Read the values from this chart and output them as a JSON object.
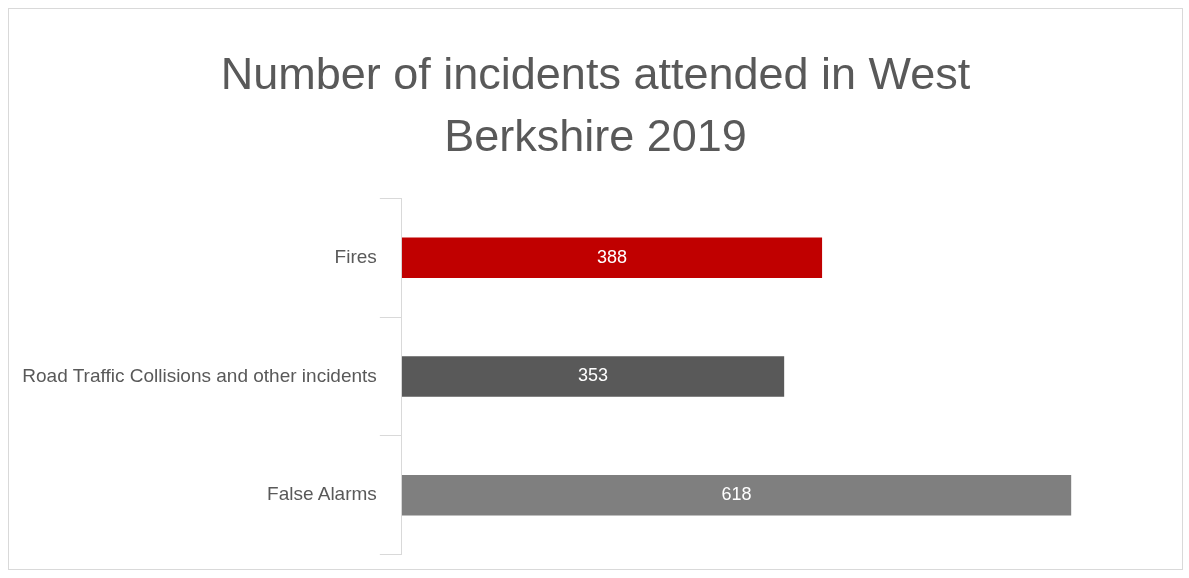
{
  "chart_data": {
    "type": "bar",
    "title": "Number of incidents attended in West Berkshire 2019",
    "orientation": "horizontal",
    "categories": [
      "Fires",
      "Road Traffic Collisions and other incidents",
      "False Alarms"
    ],
    "values": [
      388,
      353,
      618
    ],
    "colors": [
      "#c00000",
      "#595959",
      "#7f7f7f"
    ],
    "data_labels": true,
    "legend": false,
    "grid": false
  }
}
